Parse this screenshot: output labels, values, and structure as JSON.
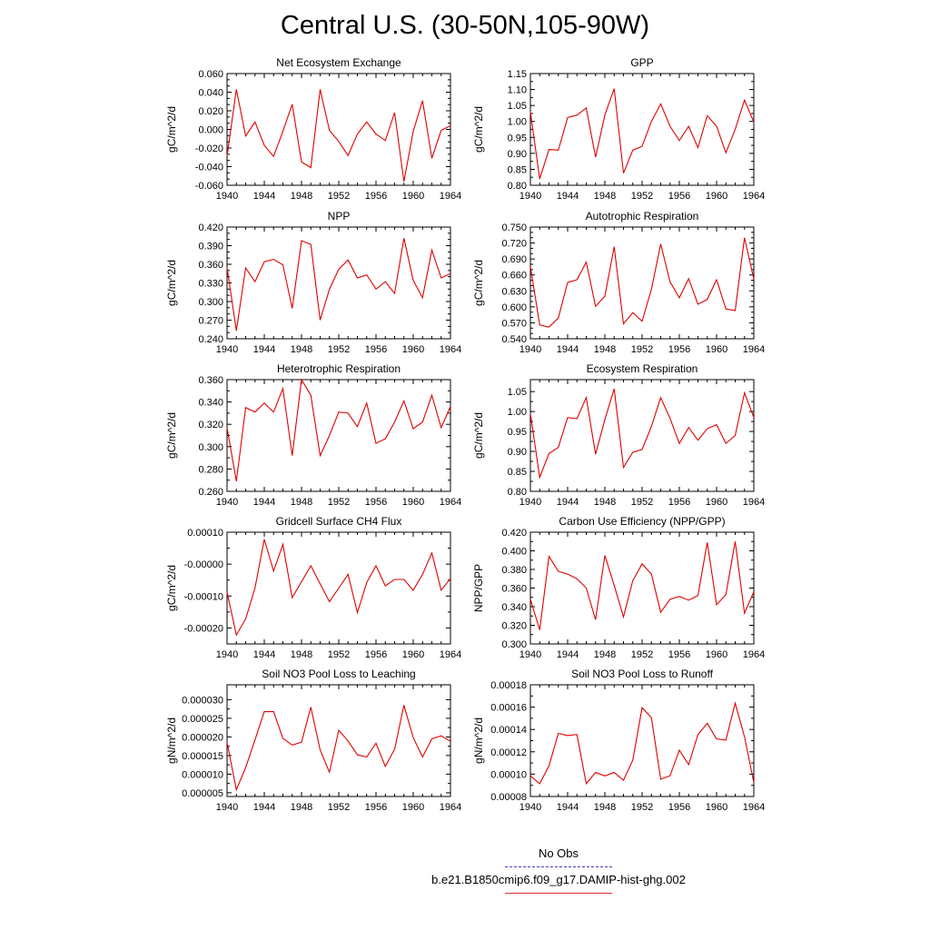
{
  "page_title": "Central U.S. (30-50N,105-90W)",
  "legend": {
    "items": [
      {
        "label": "No Obs",
        "color": "#4040c0",
        "style": "dashed"
      },
      {
        "label": "b.e21.B1850cmip6.f09_g17.DAMIP-hist-ghg.002",
        "color": "#e03030",
        "style": "solid"
      }
    ]
  },
  "chart_data": [
    {
      "type": "line",
      "title": "Net Ecosystem Exchange",
      "ylabel": "gC/m^2/d",
      "xlabel": "",
      "xlim": [
        1940,
        1964
      ],
      "ylim": [
        -0.06,
        0.06
      ],
      "xticks": [
        "1940",
        "1944",
        "1948",
        "1952",
        "1956",
        "1960",
        "1964"
      ],
      "yticks": [
        "-0.060",
        "-0.040",
        "-0.020",
        "0.000",
        "0.020",
        "0.040",
        "0.060"
      ],
      "ytick_values": [
        -0.06,
        -0.04,
        -0.02,
        0,
        0.02,
        0.04,
        0.06
      ],
      "ytick_minor": 2,
      "x": [
        1940,
        1941,
        1942,
        1943,
        1944,
        1945,
        1946,
        1947,
        1948,
        1949,
        1950,
        1951,
        1952,
        1953,
        1954,
        1955,
        1956,
        1957,
        1958,
        1959,
        1960,
        1961,
        1962,
        1963,
        1964
      ],
      "series": [
        {
          "color": "#e00000",
          "values": [
            -0.029,
            0.043,
            -0.007,
            0.008,
            -0.017,
            -0.029,
            -0.002,
            0.027,
            -0.035,
            -0.041,
            0.043,
            -0.001,
            -0.013,
            -0.028,
            -0.005,
            0.008,
            -0.005,
            -0.012,
            0.018,
            -0.056,
            -0.002,
            0.031,
            -0.031,
            -0.001,
            0.004
          ]
        }
      ]
    },
    {
      "type": "line",
      "title": "GPP",
      "ylabel": "gC/m^2/d",
      "xlabel": "",
      "xlim": [
        1940,
        1964
      ],
      "ylim": [
        0.8,
        1.15
      ],
      "xticks": [
        "1940",
        "1944",
        "1948",
        "1952",
        "1956",
        "1960",
        "1964"
      ],
      "yticks": [
        "0.80",
        "0.85",
        "0.90",
        "0.95",
        "1.00",
        "1.05",
        "1.10",
        "1.15"
      ],
      "ytick_values": [
        0.8,
        0.85,
        0.9,
        0.95,
        1.0,
        1.05,
        1.1,
        1.15
      ],
      "ytick_minor": 1,
      "x": [
        1940,
        1941,
        1942,
        1943,
        1944,
        1945,
        1946,
        1947,
        1948,
        1949,
        1950,
        1951,
        1952,
        1953,
        1954,
        1955,
        1956,
        1957,
        1958,
        1959,
        1960,
        1961,
        1962,
        1963,
        1964
      ],
      "series": [
        {
          "color": "#e00000",
          "values": [
            1.03,
            0.82,
            0.912,
            0.91,
            1.012,
            1.02,
            1.042,
            0.888,
            1.02,
            1.103,
            0.838,
            0.91,
            0.922,
            1.0,
            1.055,
            0.985,
            0.94,
            0.985,
            0.918,
            1.018,
            0.985,
            0.902,
            0.975,
            1.067,
            0.998
          ]
        }
      ]
    },
    {
      "type": "line",
      "title": "NPP",
      "ylabel": "gC/m^2/d",
      "xlabel": "",
      "xlim": [
        1940,
        1964
      ],
      "ylim": [
        0.24,
        0.42
      ],
      "xticks": [
        "1940",
        "1944",
        "1948",
        "1952",
        "1956",
        "1960",
        "1964"
      ],
      "yticks": [
        "0.240",
        "0.270",
        "0.300",
        "0.330",
        "0.360",
        "0.390",
        "0.420"
      ],
      "ytick_values": [
        0.24,
        0.27,
        0.3,
        0.33,
        0.36,
        0.39,
        0.42
      ],
      "ytick_minor": 2,
      "x": [
        1940,
        1941,
        1942,
        1943,
        1944,
        1945,
        1946,
        1947,
        1948,
        1949,
        1950,
        1951,
        1952,
        1953,
        1954,
        1955,
        1956,
        1957,
        1958,
        1959,
        1960,
        1961,
        1962,
        1963,
        1964
      ],
      "series": [
        {
          "color": "#e00000",
          "values": [
            0.355,
            0.253,
            0.354,
            0.332,
            0.364,
            0.368,
            0.359,
            0.289,
            0.398,
            0.392,
            0.27,
            0.32,
            0.352,
            0.367,
            0.338,
            0.343,
            0.32,
            0.332,
            0.313,
            0.402,
            0.334,
            0.306,
            0.383,
            0.338,
            0.345
          ]
        }
      ]
    },
    {
      "type": "line",
      "title": "Autotrophic Respiration",
      "ylabel": "gC/m^2/d",
      "xlabel": "",
      "xlim": [
        1940,
        1964
      ],
      "ylim": [
        0.54,
        0.75
      ],
      "xticks": [
        "1940",
        "1944",
        "1948",
        "1952",
        "1956",
        "1960",
        "1964"
      ],
      "yticks": [
        "0.540",
        "0.570",
        "0.600",
        "0.630",
        "0.660",
        "0.690",
        "0.720",
        "0.750"
      ],
      "ytick_values": [
        0.54,
        0.57,
        0.6,
        0.63,
        0.66,
        0.69,
        0.72,
        0.75
      ],
      "ytick_minor": 2,
      "x": [
        1940,
        1941,
        1942,
        1943,
        1944,
        1945,
        1946,
        1947,
        1948,
        1949,
        1950,
        1951,
        1952,
        1953,
        1954,
        1955,
        1956,
        1957,
        1958,
        1959,
        1960,
        1961,
        1962,
        1963,
        1964
      ],
      "series": [
        {
          "color": "#e00000",
          "values": [
            0.676,
            0.566,
            0.562,
            0.579,
            0.646,
            0.651,
            0.684,
            0.601,
            0.62,
            0.713,
            0.568,
            0.589,
            0.573,
            0.633,
            0.718,
            0.647,
            0.617,
            0.653,
            0.605,
            0.614,
            0.651,
            0.596,
            0.593,
            0.73,
            0.652
          ]
        }
      ]
    },
    {
      "type": "line",
      "title": "Heterotrophic Respiration",
      "ylabel": "gC/m^2/d",
      "xlabel": "",
      "xlim": [
        1940,
        1964
      ],
      "ylim": [
        0.26,
        0.36
      ],
      "xticks": [
        "1940",
        "1944",
        "1948",
        "1952",
        "1956",
        "1960",
        "1964"
      ],
      "yticks": [
        "0.260",
        "0.280",
        "0.300",
        "0.320",
        "0.340",
        "0.360"
      ],
      "ytick_values": [
        0.26,
        0.28,
        0.3,
        0.32,
        0.34,
        0.36
      ],
      "ytick_minor": 1,
      "x": [
        1940,
        1941,
        1942,
        1943,
        1944,
        1945,
        1946,
        1947,
        1948,
        1949,
        1950,
        1951,
        1952,
        1953,
        1954,
        1955,
        1956,
        1957,
        1958,
        1959,
        1960,
        1961,
        1962,
        1963,
        1964
      ],
      "series": [
        {
          "color": "#e00000",
          "values": [
            0.317,
            0.269,
            0.335,
            0.331,
            0.339,
            0.331,
            0.352,
            0.292,
            0.36,
            0.346,
            0.292,
            0.31,
            0.331,
            0.33,
            0.318,
            0.339,
            0.303,
            0.307,
            0.322,
            0.341,
            0.316,
            0.322,
            0.346,
            0.317,
            0.336
          ]
        }
      ]
    },
    {
      "type": "line",
      "title": "Ecosystem Respiration",
      "ylabel": "gC/m^2/d",
      "xlabel": "",
      "xlim": [
        1940,
        1964
      ],
      "ylim": [
        0.8,
        1.08
      ],
      "xticks": [
        "1940",
        "1944",
        "1948",
        "1952",
        "1956",
        "1960",
        "1964"
      ],
      "yticks": [
        "0.80",
        "0.85",
        "0.90",
        "0.95",
        "1.00",
        "1.05"
      ],
      "ytick_values": [
        0.8,
        0.85,
        0.9,
        0.95,
        1.0,
        1.05
      ],
      "ytick_minor": 1,
      "x": [
        1940,
        1941,
        1942,
        1943,
        1944,
        1945,
        1946,
        1947,
        1948,
        1949,
        1950,
        1951,
        1952,
        1953,
        1954,
        1955,
        1956,
        1957,
        1958,
        1959,
        1960,
        1961,
        1962,
        1963,
        1964
      ],
      "series": [
        {
          "color": "#e00000",
          "values": [
            0.995,
            0.835,
            0.895,
            0.91,
            0.985,
            0.982,
            1.035,
            0.893,
            0.98,
            1.057,
            0.86,
            0.898,
            0.905,
            0.963,
            1.035,
            0.983,
            0.92,
            0.96,
            0.928,
            0.957,
            0.967,
            0.92,
            0.94,
            1.047,
            0.985
          ]
        }
      ]
    },
    {
      "type": "line",
      "title": "Gridcell Surface CH4 Flux",
      "ylabel": "gC/m^2/d",
      "xlabel": "",
      "xlim": [
        1940,
        1964
      ],
      "ylim": [
        -0.00025,
        0.0001
      ],
      "xticks": [
        "1940",
        "1944",
        "1948",
        "1952",
        "1956",
        "1960",
        "1964"
      ],
      "yticks": [
        "-0.00020",
        "-0.00010",
        "-0.00000",
        "0.00010"
      ],
      "ytick_values": [
        -0.0002,
        -0.0001,
        0,
        0.0001
      ],
      "ytick_minor": 1,
      "x": [
        1940,
        1941,
        1942,
        1943,
        1944,
        1945,
        1946,
        1947,
        1948,
        1949,
        1950,
        1951,
        1952,
        1953,
        1954,
        1955,
        1956,
        1957,
        1958,
        1959,
        1960,
        1961,
        1962,
        1963,
        1964
      ],
      "series": [
        {
          "color": "#e00000",
          "values": [
            -8.8e-05,
            -0.000222,
            -0.000172,
            -7.5e-05,
            7.8e-05,
            -2.2e-05,
            6.2e-05,
            -0.000105,
            -5.5e-05,
            -5e-06,
            -6.2e-05,
            -0.000118,
            -7.5e-05,
            -3.2e-05,
            -0.000152,
            -5.8e-05,
            -5e-06,
            -6.8e-05,
            -4.8e-05,
            -4.8e-05,
            -8.2e-05,
            -3.2e-05,
            3.5e-05,
            -8.2e-05,
            -4.5e-05
          ]
        }
      ]
    },
    {
      "type": "line",
      "title": "Carbon Use Efficiency (NPP/GPP)",
      "ylabel": "NPP/GPP",
      "xlabel": "",
      "xlim": [
        1940,
        1964
      ],
      "ylim": [
        0.3,
        0.42
      ],
      "xticks": [
        "1940",
        "1944",
        "1948",
        "1952",
        "1956",
        "1960",
        "1964"
      ],
      "yticks": [
        "0.300",
        "0.320",
        "0.340",
        "0.360",
        "0.380",
        "0.400",
        "0.420"
      ],
      "ytick_values": [
        0.3,
        0.32,
        0.34,
        0.36,
        0.38,
        0.4,
        0.42
      ],
      "ytick_minor": 1,
      "x": [
        1940,
        1941,
        1942,
        1943,
        1944,
        1945,
        1946,
        1947,
        1948,
        1949,
        1950,
        1951,
        1952,
        1953,
        1954,
        1955,
        1956,
        1957,
        1958,
        1959,
        1960,
        1961,
        1962,
        1963,
        1964
      ],
      "series": [
        {
          "color": "#e00000",
          "values": [
            0.348,
            0.315,
            0.394,
            0.378,
            0.375,
            0.37,
            0.36,
            0.326,
            0.395,
            0.363,
            0.329,
            0.368,
            0.386,
            0.375,
            0.334,
            0.348,
            0.351,
            0.347,
            0.352,
            0.409,
            0.342,
            0.353,
            0.41,
            0.333,
            0.356
          ]
        }
      ]
    },
    {
      "type": "line",
      "title": "Soil NO3 Pool Loss to Leaching",
      "ylabel": "gN/m^2/d",
      "xlabel": "",
      "xlim": [
        1940,
        1964
      ],
      "ylim": [
        4e-06,
        3.4e-05
      ],
      "xticks": [
        "1940",
        "1944",
        "1948",
        "1952",
        "1956",
        "1960",
        "1964"
      ],
      "yticks": [
        "0.000005",
        "0.000010",
        "0.000015",
        "0.000020",
        "0.000025",
        "0.000030"
      ],
      "ytick_values": [
        5e-06,
        1e-05,
        1.5e-05,
        2e-05,
        2.5e-05,
        3e-05
      ],
      "ytick_minor": 1,
      "x": [
        1940,
        1941,
        1942,
        1943,
        1944,
        1945,
        1946,
        1947,
        1948,
        1949,
        1950,
        1951,
        1952,
        1953,
        1954,
        1955,
        1956,
        1957,
        1958,
        1959,
        1960,
        1961,
        1962,
        1963,
        1964
      ],
      "series": [
        {
          "color": "#e00000",
          "values": [
            1.85e-05,
            5.8e-06,
            1.18e-05,
            1.92e-05,
            2.68e-05,
            2.68e-05,
            1.96e-05,
            1.78e-05,
            1.86e-05,
            2.8e-05,
            1.65e-05,
            1.05e-05,
            2.18e-05,
            1.89e-05,
            1.52e-05,
            1.46e-05,
            1.83e-05,
            1.21e-05,
            1.67e-05,
            2.85e-05,
            1.98e-05,
            1.46e-05,
            1.95e-05,
            2.03e-05,
            1.88e-05
          ]
        }
      ]
    },
    {
      "type": "line",
      "title": "Soil NO3 Pool Loss to Runoff",
      "ylabel": "gN/m^2/d",
      "xlabel": "",
      "xlim": [
        1940,
        1964
      ],
      "ylim": [
        8e-05,
        0.00018
      ],
      "xticks": [
        "1940",
        "1944",
        "1948",
        "1952",
        "1956",
        "1960",
        "1964"
      ],
      "yticks": [
        "0.00008",
        "0.00010",
        "0.00012",
        "0.00014",
        "0.00016",
        "0.00018"
      ],
      "ytick_values": [
        8e-05,
        0.0001,
        0.00012,
        0.00014,
        0.00016,
        0.00018
      ],
      "ytick_minor": 1,
      "x": [
        1940,
        1941,
        1942,
        1943,
        1944,
        1945,
        1946,
        1947,
        1948,
        1949,
        1950,
        1951,
        1952,
        1953,
        1954,
        1955,
        1956,
        1957,
        1958,
        1959,
        1960,
        1961,
        1962,
        1963,
        1964
      ],
      "series": [
        {
          "color": "#e00000",
          "values": [
            9.85e-05,
            9.15e-05,
            0.0001075,
            0.0001365,
            0.0001345,
            0.0001355,
            9.15e-05,
            0.0001015,
            9.85e-05,
            0.0001015,
            9.45e-05,
            0.0001125,
            0.0001595,
            0.0001505,
            9.55e-05,
            9.85e-05,
            0.0001215,
            0.0001085,
            0.0001355,
            0.0001455,
            0.0001315,
            0.0001305,
            0.0001635,
            0.0001335,
            9.25e-05
          ]
        }
      ]
    }
  ]
}
